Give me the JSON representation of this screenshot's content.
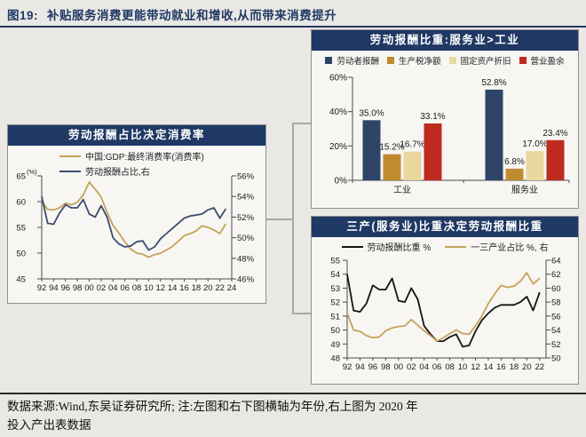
{
  "header": {
    "figure_label": "图19:",
    "title": "补贴服务消费更能带动就业和增收,从而带来消费提升"
  },
  "footer": {
    "line1": "数据来源:Wind,东吴证券研究所; 注:左图和右下图横轴为年份,右上图为 2020 年",
    "line2": "投入产出表数据"
  },
  "colors": {
    "navy": "#1f3864",
    "line_navy": "#3c4c6c",
    "gold": "#c7a259",
    "bar_navy": "#2e4468",
    "bar_gold": "#c08a2f",
    "bar_cream": "#e9d79e",
    "bar_red": "#bf2b1e",
    "black": "#141414",
    "axis": "#4a4a4a",
    "connector": "#a8a8a8"
  },
  "chart_data": [
    {
      "id": "consumption",
      "type": "line",
      "title": "劳动报酬占比决定消费率",
      "x_start": 1992,
      "x_ticks": [
        1992,
        1994,
        1996,
        1998,
        2000,
        2002,
        2004,
        2006,
        2008,
        2010,
        2012,
        2014,
        2016,
        2018,
        2020,
        2022,
        2024
      ],
      "left_axis": {
        "min": 45,
        "max": 65,
        "ticks": [
          45,
          50,
          55,
          60,
          65
        ],
        "suffix": "",
        "unit": "(%)"
      },
      "right_axis": {
        "min": 46,
        "max": 56,
        "ticks": [
          46,
          48,
          50,
          52,
          54,
          56
        ],
        "suffix": "%"
      },
      "series": [
        {
          "name": "中国:GDP:最终消费率(消费率)",
          "axis": "left",
          "color": "#c7a259",
          "values": [
            60.1,
            58.5,
            58.4,
            58.8,
            59.7,
            59.4,
            59.9,
            61.3,
            63.8,
            62.4,
            60.9,
            57.9,
            55.4,
            53.9,
            52.2,
            50.8,
            50.0,
            49.8,
            49.2,
            49.7,
            50.0,
            50.6,
            51.3,
            52.3,
            53.4,
            53.8,
            54.3,
            55.3,
            55.0,
            54.5,
            53.8,
            55.7
          ]
        },
        {
          "name": "劳动报酬占比,右",
          "axis": "right",
          "color": "#3c4c6c",
          "values": [
            54.0,
            51.4,
            51.3,
            52.4,
            53.2,
            52.9,
            52.9,
            53.7,
            52.3,
            52.0,
            53.1,
            52.0,
            50.0,
            49.4,
            49.1,
            49.2,
            49.6,
            49.7,
            48.8,
            49.1,
            49.9,
            50.4,
            50.9,
            51.4,
            51.9,
            52.1,
            52.2,
            52.3,
            52.7,
            52.9,
            51.9,
            52.8
          ]
        }
      ]
    },
    {
      "id": "io-table-2020",
      "type": "bar",
      "title": "劳动报酬比重:服务业>工业",
      "categories": [
        "工业",
        "服务业"
      ],
      "y_axis": {
        "min": 0,
        "max": 60,
        "ticks": [
          0,
          20,
          40,
          60
        ],
        "suffix": "%"
      },
      "series": [
        {
          "name": "劳动者报酬",
          "color": "#2e4468",
          "values": [
            35.0,
            52.8
          ]
        },
        {
          "name": "生产税净额",
          "color": "#c08a2f",
          "values": [
            15.2,
            6.8
          ]
        },
        {
          "name": "固定资产折旧",
          "color": "#e9d79e",
          "values": [
            16.7,
            17.0
          ]
        },
        {
          "name": "营业盈余",
          "color": "#bf2b1e",
          "values": [
            33.1,
            23.4
          ]
        }
      ]
    },
    {
      "id": "tertiary-share",
      "type": "line",
      "title": "三产(服务业)比重决定劳动报酬比重",
      "x_start": 1992,
      "x_ticks": [
        1992,
        1994,
        1996,
        1998,
        2000,
        2002,
        2004,
        2006,
        2008,
        2010,
        2012,
        2014,
        2016,
        2018,
        2020,
        2022
      ],
      "left_axis": {
        "min": 48,
        "max": 55,
        "ticks": [
          48,
          49,
          50,
          51,
          52,
          53,
          54,
          55
        ],
        "suffix": ""
      },
      "right_axis": {
        "min": 50,
        "max": 64,
        "ticks": [
          50,
          52,
          54,
          56,
          58,
          60,
          62,
          64
        ],
        "suffix": ""
      },
      "series": [
        {
          "name": "劳动报酬比重 %",
          "axis": "left",
          "color": "#141414",
          "values": [
            54.0,
            51.4,
            51.3,
            51.9,
            53.2,
            52.9,
            52.9,
            53.7,
            52.1,
            52.0,
            53.0,
            52.2,
            50.3,
            49.7,
            49.2,
            49.2,
            49.5,
            49.7,
            48.8,
            48.9,
            49.9,
            50.7,
            51.2,
            51.6,
            51.8,
            51.8,
            51.8,
            52.0,
            52.4,
            51.4,
            52.7
          ]
        },
        {
          "name": "一三产业占比 %, 右",
          "axis": "right",
          "color": "#c7a259",
          "values": [
            56.4,
            54.0,
            53.8,
            53.2,
            52.9,
            53.0,
            53.9,
            54.3,
            54.5,
            54.6,
            55.5,
            54.7,
            53.9,
            53.2,
            52.4,
            52.9,
            53.5,
            54.0,
            53.5,
            53.4,
            54.6,
            56.0,
            57.8,
            59.2,
            60.4,
            60.1,
            60.3,
            61.0,
            62.2,
            60.6,
            61.4
          ]
        }
      ]
    }
  ]
}
